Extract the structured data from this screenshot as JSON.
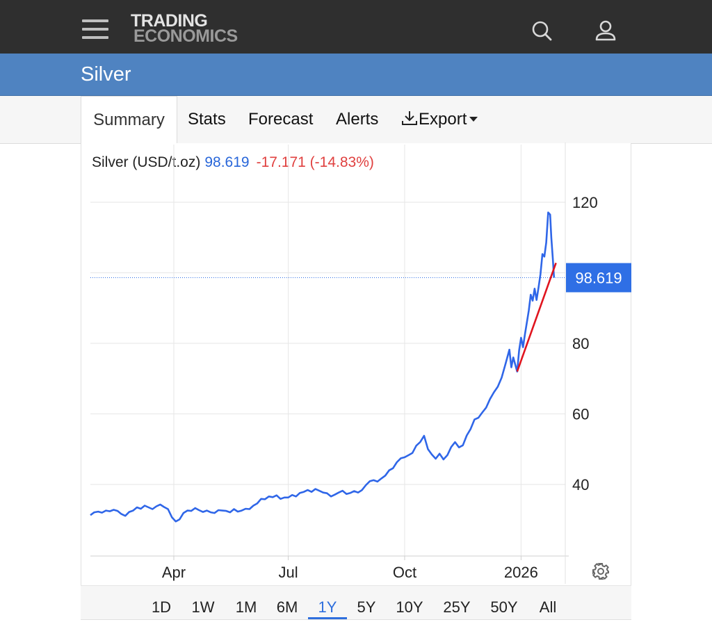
{
  "header": {
    "logo_line1": "TRADING",
    "logo_line2": "ECONOMICS"
  },
  "page": {
    "title": "Silver"
  },
  "tabs": [
    {
      "label": "Summary",
      "active": true
    },
    {
      "label": "Stats"
    },
    {
      "label": "Forecast"
    },
    {
      "label": "Alerts"
    },
    {
      "label": "Export"
    }
  ],
  "legend": {
    "name": "Silver (USD/t.oz)",
    "price": "98.619",
    "change": "-17.171 (-14.83%)"
  },
  "ranges": [
    {
      "label": "1D"
    },
    {
      "label": "1W"
    },
    {
      "label": "1M"
    },
    {
      "label": "6M"
    },
    {
      "label": "1Y",
      "active": true
    },
    {
      "label": "5Y"
    },
    {
      "label": "10Y"
    },
    {
      "label": "25Y"
    },
    {
      "label": "50Y"
    },
    {
      "label": "All"
    }
  ],
  "colors": {
    "line": "#2f66e8",
    "trendline": "#e0141e",
    "price_tag": "#2f6fe5",
    "negative": "#e0403f",
    "header_bg": "#2f2f2f",
    "title_bg": "#4f83c1"
  },
  "icons": [
    "menu-icon",
    "search-icon",
    "user-icon",
    "download-icon",
    "gear-icon"
  ],
  "chart_data": {
    "type": "line",
    "title": "",
    "xlabel": "",
    "ylabel": "",
    "ylim": [
      20,
      123
    ],
    "y_ticks": [
      40,
      60,
      80,
      120
    ],
    "x_ticks": [
      "Apr",
      "Jul",
      "Oct",
      "2026"
    ],
    "x_tick_months": [
      2.15,
      5.1,
      8.1,
      11.1
    ],
    "last_value": 98.619,
    "last_value_label": "98.619",
    "grid": true,
    "series": [
      {
        "values": [
          [
            0,
            31.3
          ],
          [
            0.1,
            32.1
          ],
          [
            0.2,
            32.3
          ],
          [
            0.3,
            32.0
          ],
          [
            0.4,
            32.6
          ],
          [
            0.5,
            32.4
          ],
          [
            0.6,
            32.8
          ],
          [
            0.7,
            32.5
          ],
          [
            0.8,
            31.6
          ],
          [
            0.9,
            31.1
          ],
          [
            1.0,
            32.2
          ],
          [
            1.1,
            32.6
          ],
          [
            1.2,
            33.5
          ],
          [
            1.3,
            33.1
          ],
          [
            1.4,
            34.0
          ],
          [
            1.5,
            33.5
          ],
          [
            1.6,
            33.0
          ],
          [
            1.7,
            33.8
          ],
          [
            1.8,
            34.3
          ],
          [
            1.9,
            33.6
          ],
          [
            2.0,
            33.0
          ],
          [
            2.1,
            30.7
          ],
          [
            2.2,
            29.5
          ],
          [
            2.3,
            30.1
          ],
          [
            2.4,
            31.9
          ],
          [
            2.5,
            32.6
          ],
          [
            2.6,
            32.5
          ],
          [
            2.7,
            33.3
          ],
          [
            2.8,
            32.7
          ],
          [
            2.9,
            32.2
          ],
          [
            3.0,
            32.6
          ],
          [
            3.1,
            32.1
          ],
          [
            3.2,
            31.9
          ],
          [
            3.3,
            32.7
          ],
          [
            3.4,
            32.6
          ],
          [
            3.5,
            32.5
          ],
          [
            3.6,
            32.1
          ],
          [
            3.7,
            33.0
          ],
          [
            3.8,
            32.3
          ],
          [
            3.9,
            32.6
          ],
          [
            4.0,
            33.1
          ],
          [
            4.1,
            33.0
          ],
          [
            4.2,
            34.0
          ],
          [
            4.3,
            34.6
          ],
          [
            4.4,
            35.9
          ],
          [
            4.5,
            35.8
          ],
          [
            4.6,
            36.6
          ],
          [
            4.7,
            36.4
          ],
          [
            4.8,
            36.9
          ],
          [
            4.9,
            35.9
          ],
          [
            5.0,
            36.3
          ],
          [
            5.1,
            36.3
          ],
          [
            5.2,
            37.0
          ],
          [
            5.3,
            36.6
          ],
          [
            5.4,
            37.6
          ],
          [
            5.5,
            37.9
          ],
          [
            5.6,
            38.4
          ],
          [
            5.7,
            37.9
          ],
          [
            5.8,
            38.7
          ],
          [
            5.9,
            38.2
          ],
          [
            6.0,
            37.7
          ],
          [
            6.1,
            37.5
          ],
          [
            6.2,
            36.6
          ],
          [
            6.3,
            37.1
          ],
          [
            6.4,
            37.7
          ],
          [
            6.5,
            38.2
          ],
          [
            6.6,
            37.3
          ],
          [
            6.7,
            37.6
          ],
          [
            6.8,
            38.1
          ],
          [
            6.9,
            37.7
          ],
          [
            7.0,
            38.4
          ],
          [
            7.1,
            39.8
          ],
          [
            7.2,
            40.9
          ],
          [
            7.3,
            41.2
          ],
          [
            7.4,
            40.8
          ],
          [
            7.5,
            41.7
          ],
          [
            7.6,
            42.5
          ],
          [
            7.7,
            44.0
          ],
          [
            7.8,
            44.6
          ],
          [
            7.9,
            46.3
          ],
          [
            8.0,
            47.4
          ],
          [
            8.1,
            47.7
          ],
          [
            8.2,
            48.3
          ],
          [
            8.3,
            48.9
          ],
          [
            8.4,
            51.0
          ],
          [
            8.5,
            52.0
          ],
          [
            8.6,
            53.8
          ],
          [
            8.7,
            50.0
          ],
          [
            8.8,
            48.5
          ],
          [
            8.9,
            47.3
          ],
          [
            9.0,
            48.7
          ],
          [
            9.1,
            47.1
          ],
          [
            9.2,
            48.3
          ],
          [
            9.3,
            50.6
          ],
          [
            9.4,
            52.0
          ],
          [
            9.5,
            50.5
          ],
          [
            9.6,
            51.1
          ],
          [
            9.7,
            53.9
          ],
          [
            9.8,
            55.7
          ],
          [
            9.9,
            58.4
          ],
          [
            10.0,
            58.9
          ],
          [
            10.1,
            60.4
          ],
          [
            10.2,
            61.8
          ],
          [
            10.3,
            64.2
          ],
          [
            10.4,
            66.1
          ],
          [
            10.5,
            67.7
          ],
          [
            10.6,
            70.3
          ],
          [
            10.7,
            74.2
          ],
          [
            10.8,
            78.2
          ],
          [
            10.85,
            73.2
          ],
          [
            10.9,
            76.0
          ],
          [
            11.0,
            72.0
          ],
          [
            11.05,
            78.0
          ],
          [
            11.1,
            81.6
          ],
          [
            11.15,
            78.9
          ],
          [
            11.2,
            82.6
          ],
          [
            11.3,
            89.3
          ],
          [
            11.35,
            93.8
          ],
          [
            11.4,
            92.1
          ],
          [
            11.45,
            95.5
          ],
          [
            11.5,
            92.3
          ],
          [
            11.55,
            95.8
          ],
          [
            11.6,
            99.6
          ],
          [
            11.65,
            105.3
          ],
          [
            11.7,
            104.6
          ],
          [
            11.75,
            108.6
          ],
          [
            11.8,
            117.1
          ],
          [
            11.85,
            116.5
          ],
          [
            11.88,
            110.0
          ],
          [
            11.92,
            103.9
          ],
          [
            11.95,
            98.6
          ]
        ],
        "color": "#2f66e8"
      }
    ],
    "annotations": [
      {
        "type": "trendline",
        "from": [
          11.0,
          72.0
        ],
        "to": [
          12.0,
          102.8
        ],
        "color": "#e0141e"
      }
    ]
  }
}
